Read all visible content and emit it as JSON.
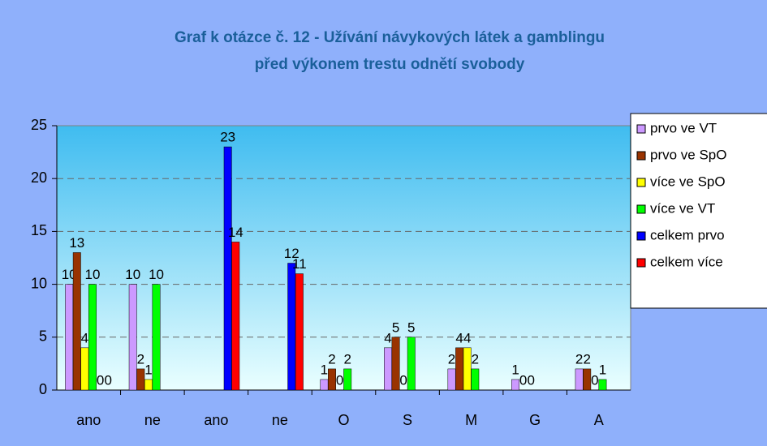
{
  "chart_data": {
    "type": "bar",
    "title": "Graf k otázce č. 12 - Užívání návykových látek a gamblingu",
    "subtitle": "před výkonem trestu odnětí svobody",
    "categories": [
      "ano",
      "ne",
      "ano",
      "ne",
      "O",
      "S",
      "M",
      "G",
      "A"
    ],
    "series": [
      {
        "name": "prvo ve VT",
        "color": "#cc99ff",
        "values": [
          10,
          10,
          null,
          null,
          1,
          4,
          2,
          1,
          2
        ]
      },
      {
        "name": "prvo ve SpO",
        "color": "#993300",
        "values": [
          13,
          2,
          null,
          null,
          2,
          5,
          4,
          0,
          2
        ]
      },
      {
        "name": "více ve SpO",
        "color": "#ffff00",
        "values": [
          4,
          1,
          null,
          null,
          0,
          0,
          4,
          0,
          0
        ]
      },
      {
        "name": "více ve VT",
        "color": "#00ff00",
        "values": [
          10,
          10,
          null,
          null,
          2,
          5,
          2,
          null,
          1
        ]
      },
      {
        "name": "celkem prvo",
        "color": "#0000ff",
        "values": [
          0,
          null,
          23,
          12,
          null,
          null,
          null,
          null,
          null
        ]
      },
      {
        "name": "celkem více",
        "color": "#ff0000",
        "values": [
          0,
          null,
          14,
          11,
          null,
          null,
          null,
          null,
          null
        ]
      }
    ],
    "ylim": [
      0,
      25
    ],
    "yticks": [
      0,
      5,
      10,
      15,
      20,
      25
    ],
    "grid": true
  }
}
